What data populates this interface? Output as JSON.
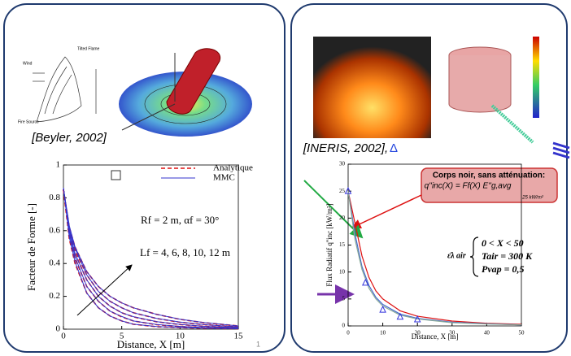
{
  "left": {
    "caption": "[Beyler, 2002]",
    "sketch_labels": [
      "Wind",
      "Tilted Flame",
      "Fire Source"
    ],
    "chart": {
      "type": "line",
      "ylabel": "Facteur de Forme [-]",
      "xlabel": "Distance, X [m]",
      "xlim": [
        0,
        15
      ],
      "ylim": [
        0,
        1
      ],
      "xticks": [
        0,
        5,
        10,
        15
      ],
      "yticks": [
        0,
        0.2,
        0.4,
        0.6,
        0.8,
        1
      ],
      "x": [
        0,
        0.5,
        1,
        2,
        3,
        4,
        5,
        6,
        8,
        10,
        12,
        15
      ],
      "series": [
        {
          "name": "Analytique",
          "color": "#dd1111",
          "dashed": true,
          "curves": [
            [
              0.85,
              0.55,
              0.4,
              0.22,
              0.13,
              0.08,
              0.05,
              0.03,
              0.015,
              0.01,
              0.005,
              0.003
            ],
            [
              0.85,
              0.57,
              0.43,
              0.26,
              0.17,
              0.11,
              0.075,
              0.05,
              0.027,
              0.016,
              0.01,
              0.005
            ],
            [
              0.85,
              0.59,
              0.46,
              0.3,
              0.2,
              0.14,
              0.1,
              0.075,
              0.045,
              0.028,
              0.018,
              0.009
            ],
            [
              0.85,
              0.61,
              0.48,
              0.33,
              0.23,
              0.17,
              0.13,
              0.1,
              0.065,
              0.042,
              0.028,
              0.014
            ],
            [
              0.85,
              0.62,
              0.5,
              0.35,
              0.26,
              0.2,
              0.16,
              0.13,
              0.09,
              0.06,
              0.04,
              0.02
            ]
          ]
        },
        {
          "name": "MMC",
          "color": "#3333cc",
          "dashed": false,
          "curves": [
            [
              0.86,
              0.56,
              0.41,
              0.22,
              0.13,
              0.08,
              0.05,
              0.03,
              0.016,
              0.01,
              0.006,
              0.003
            ],
            [
              0.86,
              0.58,
              0.44,
              0.26,
              0.17,
              0.11,
              0.077,
              0.05,
              0.028,
              0.017,
              0.01,
              0.005
            ],
            [
              0.86,
              0.6,
              0.46,
              0.3,
              0.2,
              0.14,
              0.1,
              0.076,
              0.046,
              0.029,
              0.018,
              0.009
            ],
            [
              0.86,
              0.61,
              0.49,
              0.33,
              0.23,
              0.17,
              0.13,
              0.1,
              0.066,
              0.043,
              0.028,
              0.014
            ],
            [
              0.86,
              0.63,
              0.5,
              0.35,
              0.26,
              0.2,
              0.16,
              0.13,
              0.09,
              0.061,
              0.041,
              0.02
            ]
          ]
        }
      ],
      "annotation_r": "Rf = 2 m, αf = 30°",
      "annotation_l": "Lf = 4, 6, 8, 10, 12 m"
    },
    "page_number": "1"
  },
  "right": {
    "caption": "[INERIS, 2002],",
    "caption_symbol": "Δ",
    "chart": {
      "type": "line",
      "ylabel": "Flux Radiatif q''inc [kW/m²]",
      "xlabel": "Distance, X [m]",
      "xlim": [
        0,
        50
      ],
      "ylim": [
        0,
        30
      ],
      "xticks": [
        0,
        10,
        20,
        30,
        40,
        50
      ],
      "yticks": [
        0,
        5,
        10,
        15,
        20,
        25,
        30
      ],
      "x": [
        0,
        2,
        4,
        6,
        8,
        10,
        15,
        20,
        30,
        40,
        50
      ],
      "series": [
        {
          "color": "#dd1111",
          "values": [
            25,
            19,
            13,
            9,
            6.5,
            5,
            2.8,
            1.8,
            0.9,
            0.5,
            0.3
          ]
        },
        {
          "color": "#4466cc",
          "values": [
            25,
            17,
            11,
            7.5,
            5.3,
            4,
            2.2,
            1.4,
            0.7,
            0.4,
            0.2
          ]
        },
        {
          "color": "#88aa99",
          "values": [
            25,
            16,
            10.5,
            7,
            5,
            3.7,
            2,
            1.3,
            0.6,
            0.35,
            0.2
          ]
        }
      ],
      "measures": {
        "color": "#3333dd",
        "x": [
          0,
          5,
          10,
          15,
          20
        ],
        "values": [
          25,
          8,
          3,
          1.7,
          1.2
        ]
      },
      "callout": [
        "Corps noir, sans atténuation:",
        "q''inc(X) = Ff(X) E''g,avg",
        "25 kW/m²"
      ],
      "conditions": {
        "symbol": "ε̄λ air",
        "lines": [
          "0 < X < 50",
          "Tair = 300 K",
          "Pvap = 0,5"
        ]
      }
    }
  }
}
